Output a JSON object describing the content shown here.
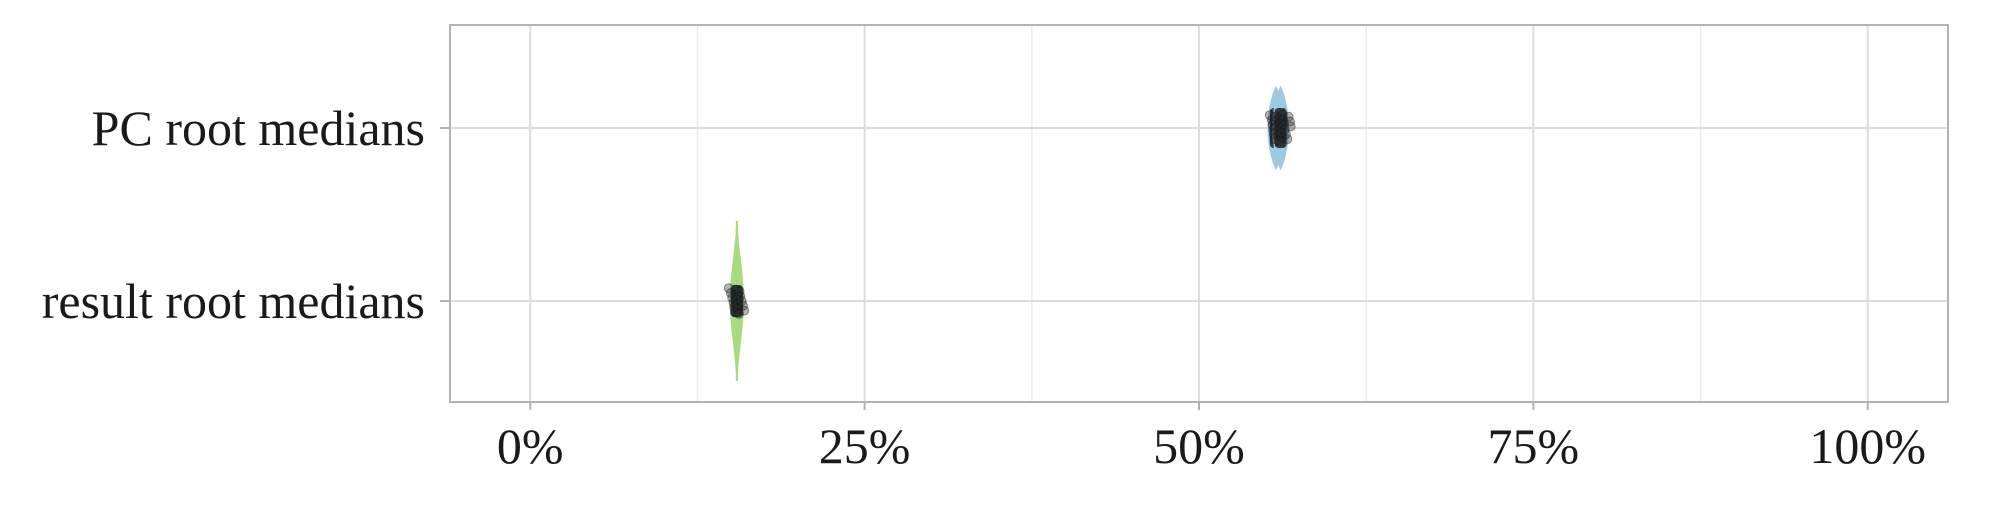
{
  "chart_data": {
    "type": "violin",
    "title": "",
    "xlabel": "",
    "ylabel": "",
    "xlim": [
      -0.06,
      1.06
    ],
    "x_ticks": [
      0,
      0.25,
      0.5,
      0.75,
      1.0
    ],
    "x_tick_labels": [
      "0%",
      "25%",
      "50%",
      "75%",
      "100%"
    ],
    "grid": true,
    "legend": "none",
    "categories": [
      "PC root medians",
      "result root medians"
    ],
    "series": [
      {
        "category": "PC root medians",
        "color": "#9ecae1",
        "violins": [
          {
            "center": 0.5575,
            "spread": 0.0055,
            "low": 0.556,
            "high": 0.559
          },
          {
            "center": 0.561,
            "spread": 0.0055,
            "low": 0.5595,
            "high": 0.5625
          }
        ],
        "points": [
          0.553,
          0.5545,
          0.555,
          0.5555,
          0.556,
          0.5565,
          0.557,
          0.5575,
          0.558,
          0.5585,
          0.559,
          0.5595,
          0.56,
          0.5605,
          0.561,
          0.5615,
          0.562,
          0.5625,
          0.563,
          0.5635,
          0.564,
          0.565,
          0.566,
          0.567,
          0.568,
          0.5685
        ]
      },
      {
        "category": "result root medians",
        "color": "#a6dc7f",
        "violins": [
          {
            "center": 0.1545,
            "spread": 0.0045,
            "low": 0.153,
            "high": 0.156
          }
        ],
        "points": [
          0.1485,
          0.15,
          0.151,
          0.152,
          0.1525,
          0.153,
          0.1535,
          0.154,
          0.1545,
          0.155,
          0.1555,
          0.156,
          0.1565,
          0.157,
          0.158,
          0.159,
          0.16
        ]
      }
    ]
  }
}
